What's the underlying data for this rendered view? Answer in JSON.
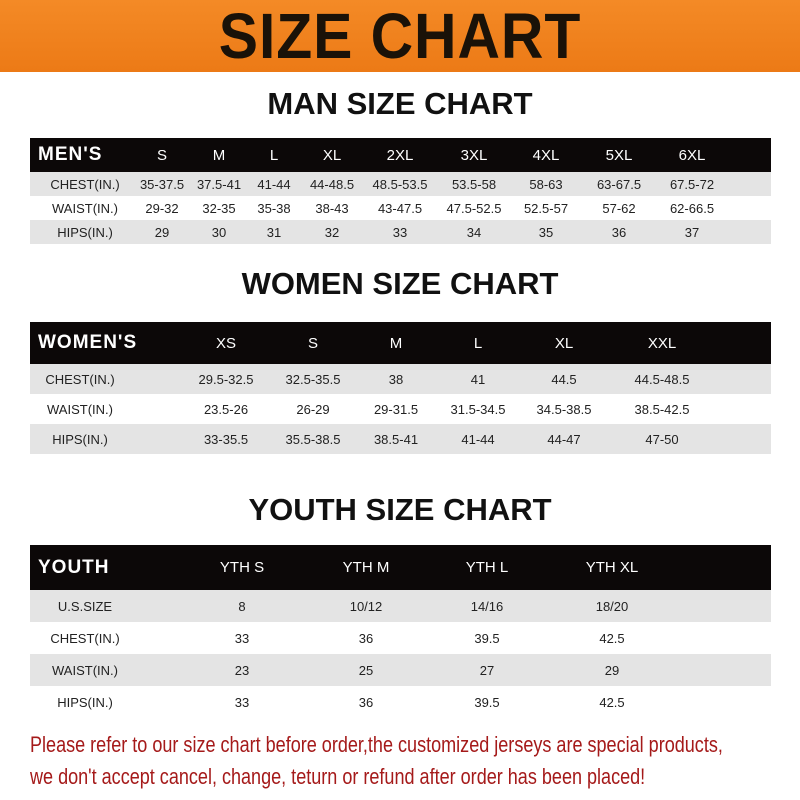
{
  "banner": {
    "title": "SIZE CHART",
    "color": "#f0821e"
  },
  "men": {
    "title": "MAN SIZE CHART",
    "header": "MEN'S",
    "sizes": [
      "S",
      "M",
      "L",
      "XL",
      "2XL",
      "3XL",
      "4XL",
      "5XL",
      "6XL"
    ],
    "rows": [
      {
        "label": "CHEST(IN.)",
        "values": [
          "35-37.5",
          "37.5-41",
          "41-44",
          "44-48.5",
          "48.5-53.5",
          "53.5-58",
          "58-63",
          "63-67.5",
          "67.5-72"
        ]
      },
      {
        "label": "WAIST(IN.)",
        "values": [
          "29-32",
          "32-35",
          "35-38",
          "38-43",
          "43-47.5",
          "47.5-52.5",
          "52.5-57",
          "57-62",
          "62-66.5"
        ]
      },
      {
        "label": "HIPS(IN.)",
        "values": [
          "29",
          "30",
          "31",
          "32",
          "33",
          "34",
          "35",
          "36",
          "37"
        ]
      }
    ]
  },
  "women": {
    "title": "WOMEN SIZE CHART",
    "header": "WOMEN'S",
    "sizes": [
      "XS",
      "S",
      "M",
      "L",
      "XL",
      "XXL"
    ],
    "rows": [
      {
        "label": "CHEST(IN.)",
        "values": [
          "29.5-32.5",
          "32.5-35.5",
          "38",
          "41",
          "44.5",
          "44.5-48.5"
        ]
      },
      {
        "label": "WAIST(IN.)",
        "values": [
          "23.5-26",
          "26-29",
          "29-31.5",
          "31.5-34.5",
          "34.5-38.5",
          "38.5-42.5"
        ]
      },
      {
        "label": "HIPS(IN.)",
        "values": [
          "33-35.5",
          "35.5-38.5",
          "38.5-41",
          "41-44",
          "44-47",
          "47-50"
        ]
      }
    ]
  },
  "youth": {
    "title": "YOUTH SIZE CHART",
    "header": "YOUTH",
    "sizes": [
      "YTH S",
      "YTH M",
      "YTH L",
      "YTH XL"
    ],
    "rows": [
      {
        "label": "U.S.SIZE",
        "values": [
          "8",
          "10/12",
          "14/16",
          "18/20"
        ]
      },
      {
        "label": "CHEST(IN.)",
        "values": [
          "33",
          "36",
          "39.5",
          "42.5"
        ]
      },
      {
        "label": "WAIST(IN.)",
        "values": [
          "23",
          "25",
          "27",
          "29"
        ]
      },
      {
        "label": "HIPS(IN.)",
        "values": [
          "33",
          "36",
          "39.5",
          "42.5"
        ]
      }
    ]
  },
  "note": {
    "line1": "Please refer to our size chart before order,the customized jerseys are special products,",
    "line2": "we don't accept cancel, change, teturn or refund after order has been placed!",
    "color": "#a51a1a"
  }
}
